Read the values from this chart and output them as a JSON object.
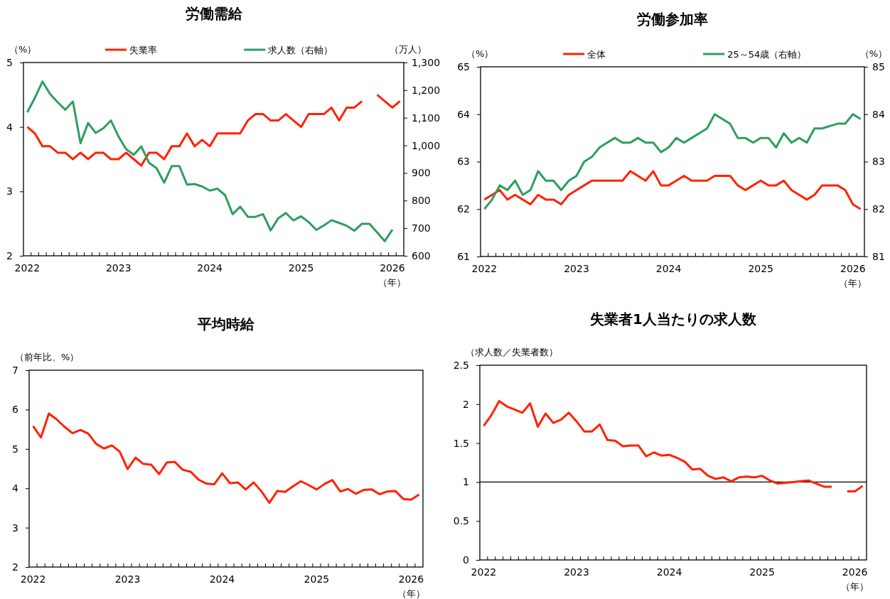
{
  "chart_data": [
    {
      "type": "line",
      "title": "労働需給",
      "ylabel": "（%）",
      "y2label": "（万人）",
      "xlabel": "（年）",
      "categories": [
        "2022",
        null,
        null,
        null,
        null,
        null,
        null,
        null,
        null,
        null,
        null,
        null,
        "2023",
        null,
        null,
        null,
        null,
        null,
        null,
        null,
        null,
        null,
        null,
        null,
        "2024",
        null,
        null,
        null,
        null,
        null,
        null,
        null,
        null,
        null,
        null,
        null,
        "2025",
        null,
        null,
        null,
        null,
        null,
        null,
        null,
        null,
        null,
        null,
        null,
        "2026",
        null
      ],
      "series": [
        {
          "name": "失業率",
          "color": "#ff2200",
          "values": [
            4.0,
            3.9,
            3.7,
            3.7,
            3.6,
            3.6,
            3.5,
            3.6,
            3.5,
            3.6,
            3.6,
            3.5,
            3.5,
            3.6,
            3.5,
            3.4,
            3.6,
            3.6,
            3.5,
            3.7,
            3.7,
            3.9,
            3.7,
            3.8,
            3.7,
            3.9,
            3.9,
            3.9,
            3.9,
            4.1,
            4.2,
            4.2,
            4.1,
            4.1,
            4.2,
            4.1,
            4.0,
            4.2,
            4.2,
            4.2,
            4.3,
            4.1,
            4.3,
            4.3,
            4.4,
            null,
            4.5,
            4.4,
            4.3,
            4.4
          ]
        },
        {
          "name": "求人数（右軸）",
          "color": "#2e9e5e",
          "axis": "y2",
          "values": [
            1120,
            1172,
            1231,
            1186,
            1156,
            1129,
            1159,
            1008,
            1081,
            1045,
            1062,
            1090,
            1032,
            986,
            966,
            996,
            937,
            917,
            865,
            925,
            925,
            858,
            860,
            851,
            836,
            843,
            820,
            751,
            778,
            741,
            741,
            751,
            692,
            736,
            755,
            728,
            743,
            722,
            694,
            710,
            729,
            719,
            709,
            691,
            716,
            716,
            685,
            653,
            695,
            null
          ]
        }
      ],
      "ylim": [
        2,
        5
      ],
      "yticks": [
        2,
        3,
        4,
        5
      ],
      "y2lim": [
        600,
        1300
      ],
      "y2ticks": [
        600,
        700,
        800,
        900,
        {
          "value": 1000,
          "label": "1,000"
        },
        {
          "value": 1100,
          "label": "1,100"
        },
        {
          "value": 1200,
          "label": "1,200"
        },
        {
          "value": 1300,
          "label": "1,300"
        }
      ],
      "legend": "top"
    },
    {
      "type": "line",
      "title": "労働参加率",
      "ylabel": "（%）",
      "y2label": "（%）",
      "xlabel": "（年）",
      "categories": [
        "2022",
        null,
        null,
        null,
        null,
        null,
        null,
        null,
        null,
        null,
        null,
        null,
        "2023",
        null,
        null,
        null,
        null,
        null,
        null,
        null,
        null,
        null,
        null,
        null,
        "2024",
        null,
        null,
        null,
        null,
        null,
        null,
        null,
        null,
        null,
        null,
        null,
        "2025",
        null,
        null,
        null,
        null,
        null,
        null,
        null,
        null,
        null,
        null,
        null,
        "2026",
        null
      ],
      "series": [
        {
          "name": "全体",
          "color": "#ff2200",
          "values": [
            62.2,
            62.3,
            62.4,
            62.2,
            62.3,
            62.2,
            62.1,
            62.3,
            62.2,
            62.2,
            62.1,
            62.3,
            62.4,
            62.5,
            62.6,
            62.6,
            62.6,
            62.6,
            62.6,
            62.8,
            62.7,
            62.6,
            62.8,
            62.5,
            62.5,
            62.6,
            62.7,
            62.6,
            62.6,
            62.6,
            62.7,
            62.7,
            62.7,
            62.5,
            62.4,
            62.5,
            62.6,
            62.5,
            62.5,
            62.6,
            62.4,
            62.3,
            62.2,
            62.3,
            62.5,
            62.5,
            62.5,
            62.4,
            62.1,
            62.0
          ]
        },
        {
          "name": "25～54歳（右軸）",
          "color": "#2e9e5e",
          "axis": "y2",
          "values": [
            82.0,
            82.2,
            82.5,
            82.4,
            82.6,
            82.3,
            82.4,
            82.8,
            82.6,
            82.6,
            82.4,
            82.6,
            82.7,
            83.0,
            83.1,
            83.3,
            83.4,
            83.5,
            83.4,
            83.4,
            83.5,
            83.4,
            83.4,
            83.2,
            83.3,
            83.5,
            83.4,
            83.5,
            83.6,
            83.7,
            84.0,
            83.9,
            83.8,
            83.5,
            83.5,
            83.4,
            83.5,
            83.5,
            83.3,
            83.6,
            83.4,
            83.5,
            83.4,
            83.7,
            83.7,
            83.75,
            83.8,
            83.8,
            84.0,
            83.9
          ]
        }
      ],
      "ylim": [
        61,
        65
      ],
      "yticks": [
        61,
        62,
        63,
        64,
        65
      ],
      "y2lim": [
        81,
        85
      ],
      "y2ticks": [
        81,
        82,
        83,
        84,
        85
      ],
      "legend": "top"
    },
    {
      "type": "line",
      "title": "平均時給",
      "ylabel": "（前年比、%）",
      "xlabel": "（年）",
      "categories": [
        "2022",
        null,
        null,
        null,
        null,
        null,
        null,
        null,
        null,
        null,
        null,
        null,
        "2023",
        null,
        null,
        null,
        null,
        null,
        null,
        null,
        null,
        null,
        null,
        null,
        "2024",
        null,
        null,
        null,
        null,
        null,
        null,
        null,
        null,
        null,
        null,
        null,
        "2025",
        null,
        null,
        null,
        null,
        null,
        null,
        null,
        null,
        null,
        null,
        null,
        "2026",
        null
      ],
      "series": [
        {
          "color": "#ff2200",
          "values": [
            5.58,
            5.29,
            5.9,
            5.75,
            5.56,
            5.4,
            5.48,
            5.39,
            5.13,
            5.01,
            5.09,
            4.93,
            4.49,
            4.78,
            4.62,
            4.6,
            4.36,
            4.66,
            4.67,
            4.47,
            4.42,
            4.22,
            4.12,
            4.1,
            4.38,
            4.13,
            4.15,
            3.97,
            4.15,
            3.92,
            3.63,
            3.93,
            3.91,
            4.05,
            4.18,
            4.08,
            3.97,
            4.11,
            4.21,
            3.92,
            3.98,
            3.86,
            3.96,
            3.97,
            3.85,
            3.92,
            3.93,
            3.73,
            3.71,
            3.84
          ]
        }
      ],
      "ylim": [
        2,
        7
      ],
      "yticks": [
        2,
        3,
        4,
        5,
        6,
        7
      ]
    },
    {
      "type": "line",
      "title": "失業者1人当たりの求人数",
      "ylabel": "（求人数／失業者数）",
      "xlabel": "（年）",
      "categories": [
        "2022",
        null,
        null,
        null,
        null,
        null,
        null,
        null,
        null,
        null,
        null,
        null,
        "2023",
        null,
        null,
        null,
        null,
        null,
        null,
        null,
        null,
        null,
        null,
        null,
        "2024",
        null,
        null,
        null,
        null,
        null,
        null,
        null,
        null,
        null,
        null,
        null,
        "2025",
        null,
        null,
        null,
        null,
        null,
        null,
        null,
        null,
        null,
        null,
        null,
        "2026",
        null
      ],
      "series": [
        {
          "color": "#ff2200",
          "values": [
            1.72,
            1.86,
            2.04,
            1.97,
            1.93,
            1.89,
            2.01,
            1.71,
            1.88,
            1.76,
            1.8,
            1.89,
            1.78,
            1.65,
            1.65,
            1.74,
            1.54,
            1.53,
            1.46,
            1.47,
            1.47,
            1.33,
            1.38,
            1.34,
            1.35,
            1.31,
            1.26,
            1.16,
            1.17,
            1.08,
            1.04,
            1.06,
            1.01,
            1.06,
            1.07,
            1.06,
            1.08,
            1.02,
            0.98,
            0.99,
            1.0,
            1.01,
            1.02,
            0.98,
            0.94,
            0.94,
            null,
            0.88,
            0.88,
            0.95
          ]
        }
      ],
      "ylim": [
        0,
        2.5
      ],
      "yticks": [
        0,
        0.5,
        1,
        1.5,
        2,
        2.5
      ],
      "ref_lines": [
        {
          "axis": "y",
          "value": 1,
          "color": "#000000"
        }
      ]
    }
  ]
}
